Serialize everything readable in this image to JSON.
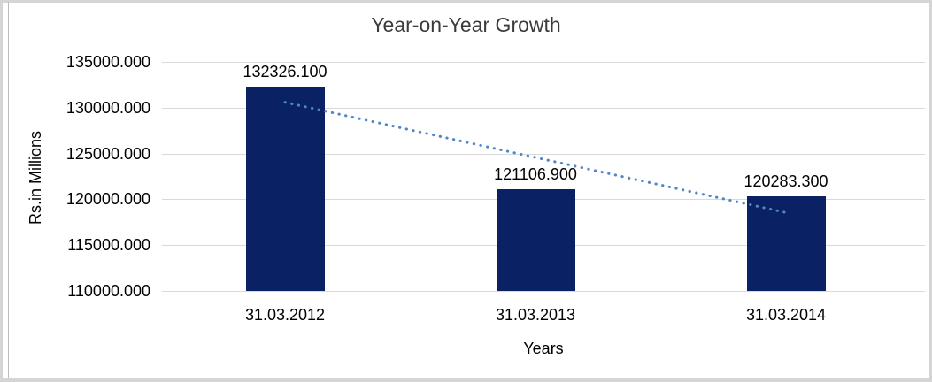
{
  "chart_data": {
    "type": "bar",
    "title": "Year-on-Year Growth",
    "categories": [
      "31.03.2012",
      "31.03.2013",
      "31.03.2014"
    ],
    "values": [
      132326.1,
      121106.9,
      120283.3
    ],
    "data_labels": [
      "132326.100",
      "121106.900",
      "120283.300"
    ],
    "xlabel": "Years",
    "ylabel": "Rs.in Millions",
    "ylim": [
      110000,
      135000
    ],
    "ytick_step": 5000,
    "ytick_labels": [
      "135000.000",
      "130000.000",
      "125000.000",
      "120000.000",
      "115000.000",
      "110000.000"
    ],
    "grid": true,
    "legend": false,
    "bar_color": "#0A2164",
    "gridline_color": "#D9D9D9",
    "trendline": {
      "style": "dotted",
      "fit": "linear",
      "color": "#4F86C6"
    },
    "frame_border_color": "#D5D5D5",
    "title_color": "#3B3B3B",
    "text_color": "#000000"
  }
}
